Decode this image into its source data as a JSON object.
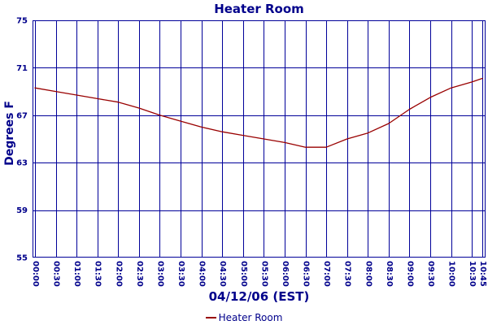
{
  "chart_data": {
    "type": "line",
    "title": "Heater Room",
    "ylabel": "Degrees F",
    "xlabel": "04/12/06 (EST)",
    "grid": true,
    "ylim": [
      55,
      75
    ],
    "y_ticks": [
      75,
      71,
      67,
      63,
      59,
      55
    ],
    "y_gridlines": [
      71,
      67,
      63,
      59
    ],
    "x_ticks": [
      "00:00",
      "00:30",
      "01:00",
      "01:30",
      "02:00",
      "02:30",
      "03:00",
      "03:30",
      "04:00",
      "04:30",
      "05:00",
      "05:30",
      "06:00",
      "06:30",
      "07:00",
      "07:30",
      "08:00",
      "08:30",
      "09:00",
      "09:30",
      "10:00",
      "10:30",
      "10:45"
    ],
    "x_range_minutes": [
      0,
      645
    ],
    "legend": {
      "position": "bottom",
      "entries": [
        {
          "label": "Heater Room",
          "color": "#990000"
        }
      ]
    },
    "series": [
      {
        "name": "Heater Room",
        "color": "#990000",
        "points": [
          {
            "t": "00:00",
            "v": 69.3
          },
          {
            "t": "00:30",
            "v": 69.0
          },
          {
            "t": "01:00",
            "v": 68.7
          },
          {
            "t": "01:30",
            "v": 68.4
          },
          {
            "t": "02:00",
            "v": 68.1
          },
          {
            "t": "02:30",
            "v": 67.6
          },
          {
            "t": "03:00",
            "v": 67.0
          },
          {
            "t": "03:30",
            "v": 66.5
          },
          {
            "t": "04:00",
            "v": 66.0
          },
          {
            "t": "04:30",
            "v": 65.6
          },
          {
            "t": "05:00",
            "v": 65.3
          },
          {
            "t": "05:30",
            "v": 65.0
          },
          {
            "t": "06:00",
            "v": 64.7
          },
          {
            "t": "06:30",
            "v": 64.3
          },
          {
            "t": "07:00",
            "v": 64.3
          },
          {
            "t": "07:30",
            "v": 65.0
          },
          {
            "t": "08:00",
            "v": 65.5
          },
          {
            "t": "08:30",
            "v": 66.3
          },
          {
            "t": "09:00",
            "v": 67.5
          },
          {
            "t": "09:30",
            "v": 68.5
          },
          {
            "t": "10:00",
            "v": 69.3
          },
          {
            "t": "10:30",
            "v": 69.8
          },
          {
            "t": "10:45",
            "v": 70.1
          }
        ]
      }
    ],
    "colors": {
      "background": "#ffffff",
      "grid": "#000099",
      "axis_text": "#00008b",
      "line": "#990000"
    }
  }
}
